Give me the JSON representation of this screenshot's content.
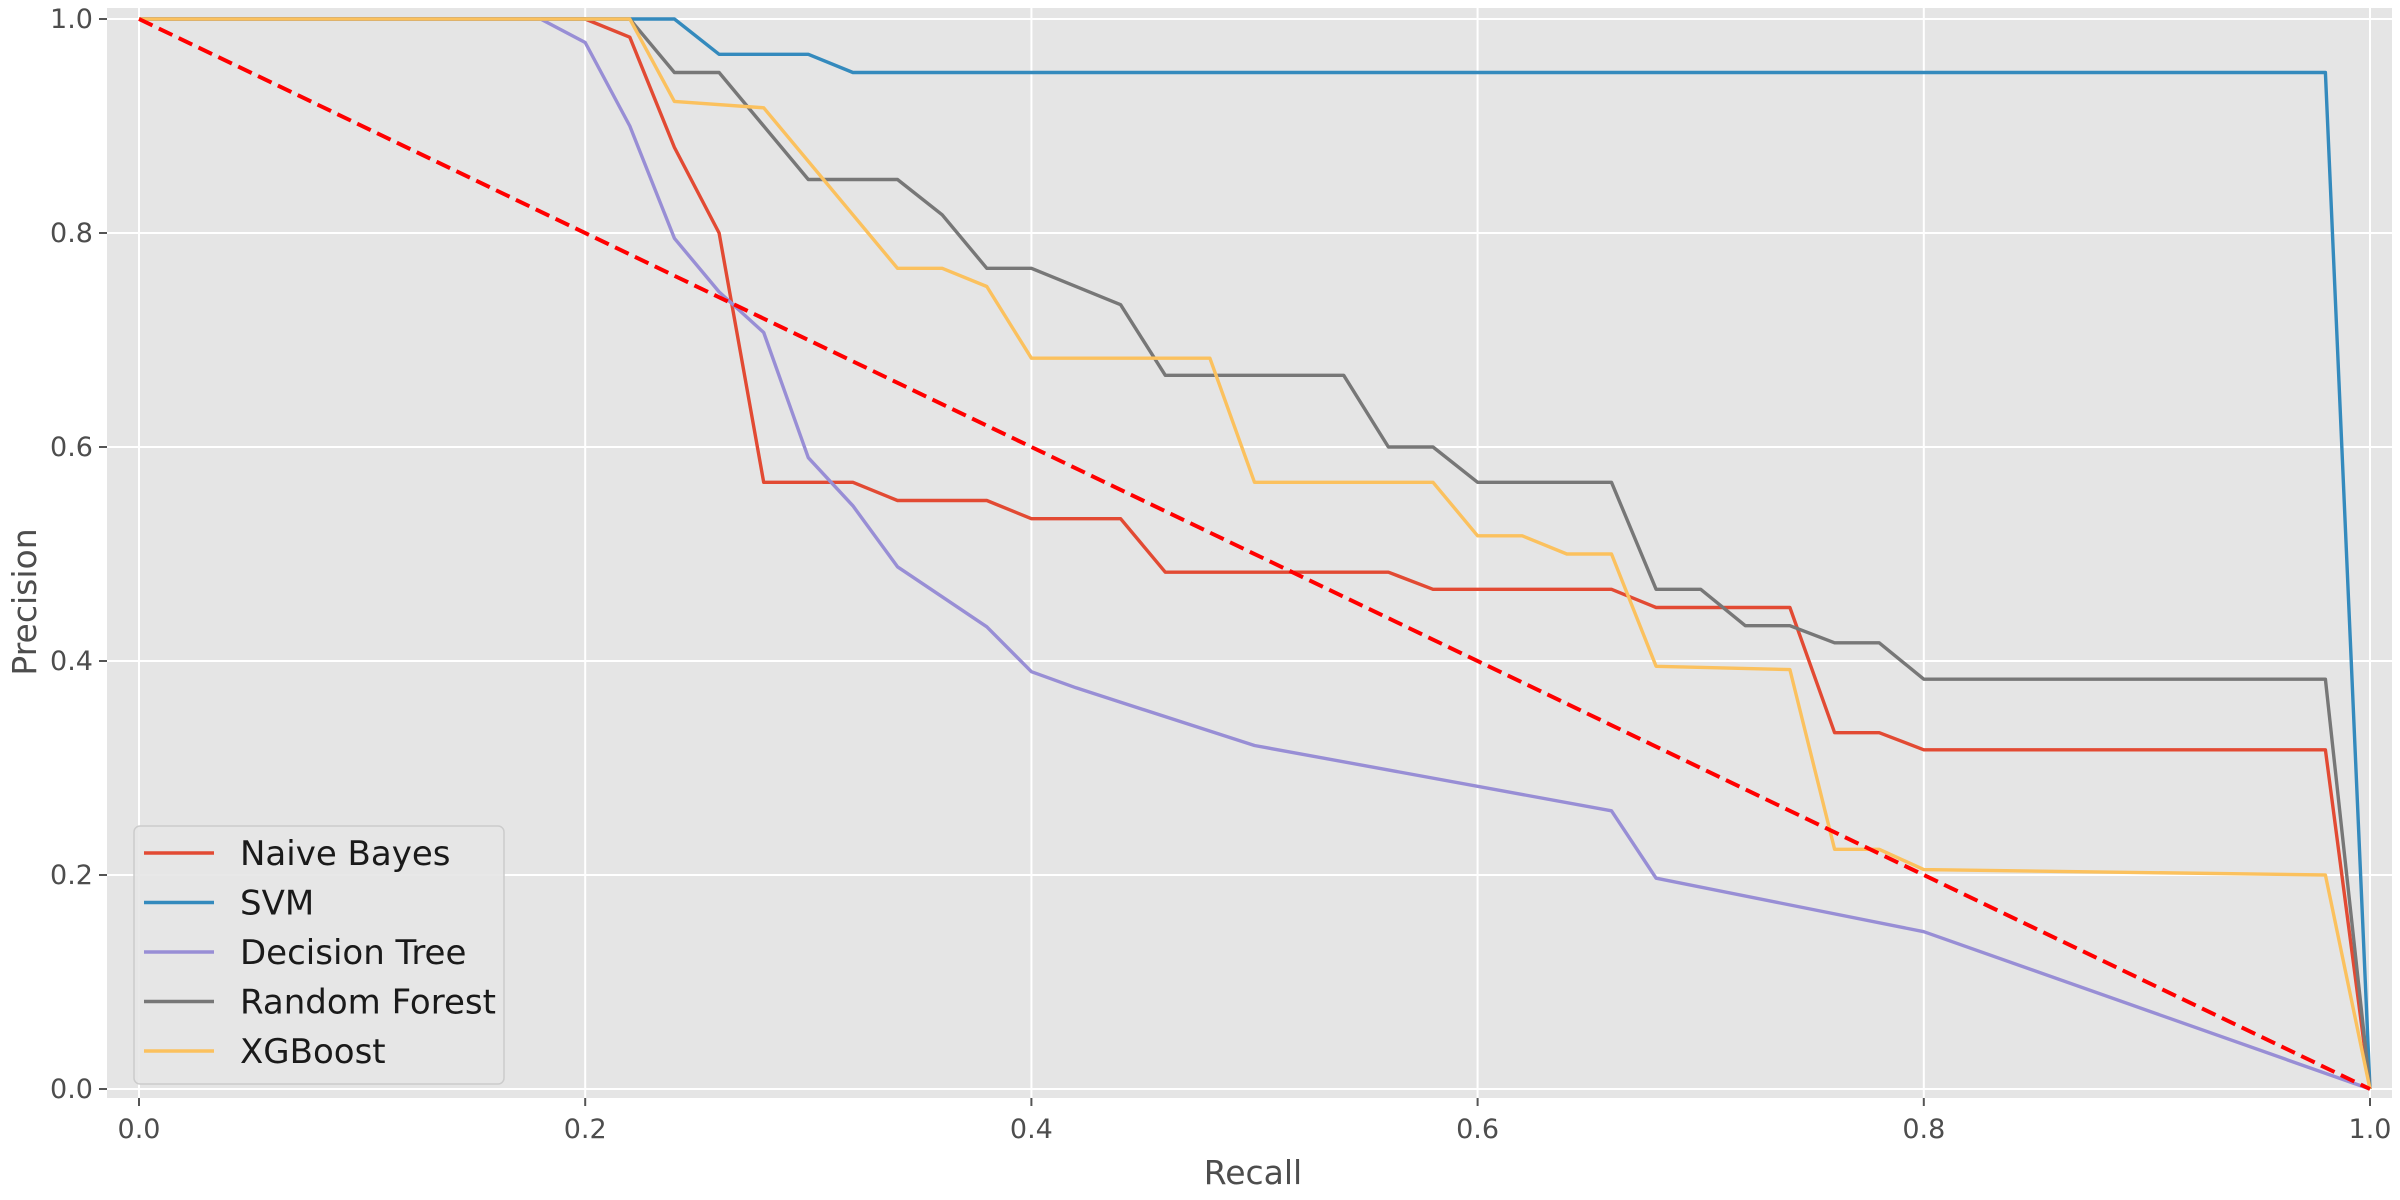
{
  "chart_data": {
    "type": "line",
    "title": "",
    "xlabel": "Recall",
    "ylabel": "Precision",
    "xlim": [
      0.0,
      1.0
    ],
    "ylim": [
      0.0,
      1.0
    ],
    "x_ticks": [
      "0.0",
      "0.2",
      "0.4",
      "0.6",
      "0.8",
      "1.0"
    ],
    "y_ticks": [
      "0.0",
      "0.2",
      "0.4",
      "0.6",
      "0.8",
      "1.0"
    ],
    "grid": true,
    "legend_position": "lower-left",
    "style": "ggplot",
    "series": [
      {
        "name": "Naive Bayes",
        "color": "#E24A33",
        "x": [
          0.0,
          0.2,
          0.22,
          0.24,
          0.26,
          0.28,
          0.32,
          0.34,
          0.38,
          0.4,
          0.44,
          0.46,
          0.56,
          0.58,
          0.66,
          0.68,
          0.74,
          0.76,
          0.78,
          0.8,
          0.98,
          1.0
        ],
        "y": [
          1.0,
          1.0,
          0.983,
          0.88,
          0.8,
          0.567,
          0.567,
          0.55,
          0.55,
          0.533,
          0.533,
          0.483,
          0.483,
          0.467,
          0.467,
          0.45,
          0.45,
          0.333,
          0.333,
          0.317,
          0.317,
          0.0
        ]
      },
      {
        "name": "SVM",
        "color": "#348ABD",
        "x": [
          0.0,
          0.24,
          0.26,
          0.3,
          0.32,
          0.98,
          1.0
        ],
        "y": [
          1.0,
          1.0,
          0.967,
          0.967,
          0.95,
          0.95,
          0.0
        ]
      },
      {
        "name": "Decision Tree",
        "color": "#988ED5",
        "x": [
          0.0,
          0.18,
          0.2,
          0.22,
          0.24,
          0.26,
          0.28,
          0.3,
          0.32,
          0.34,
          0.36,
          0.38,
          0.4,
          0.42,
          0.5,
          0.66,
          0.68,
          0.8,
          1.0
        ],
        "y": [
          1.0,
          1.0,
          0.978,
          0.9,
          0.795,
          0.745,
          0.707,
          0.59,
          0.545,
          0.488,
          0.46,
          0.432,
          0.39,
          0.375,
          0.321,
          0.26,
          0.197,
          0.147,
          0.0
        ]
      },
      {
        "name": "Random Forest",
        "color": "#777777",
        "x": [
          0.0,
          0.22,
          0.24,
          0.26,
          0.3,
          0.34,
          0.36,
          0.38,
          0.4,
          0.44,
          0.46,
          0.54,
          0.56,
          0.58,
          0.6,
          0.66,
          0.68,
          0.7,
          0.72,
          0.74,
          0.76,
          0.78,
          0.8,
          0.98,
          1.0
        ],
        "y": [
          1.0,
          1.0,
          0.95,
          0.95,
          0.85,
          0.85,
          0.817,
          0.767,
          0.767,
          0.733,
          0.667,
          0.667,
          0.6,
          0.6,
          0.567,
          0.567,
          0.467,
          0.467,
          0.433,
          0.433,
          0.417,
          0.417,
          0.383,
          0.383,
          0.0
        ]
      },
      {
        "name": "XGBoost",
        "color": "#FBC15E",
        "x": [
          0.0,
          0.22,
          0.24,
          0.28,
          0.34,
          0.36,
          0.38,
          0.4,
          0.48,
          0.5,
          0.58,
          0.6,
          0.62,
          0.64,
          0.66,
          0.68,
          0.74,
          0.76,
          0.78,
          0.8,
          0.98,
          1.0
        ],
        "y": [
          1.0,
          1.0,
          0.923,
          0.917,
          0.767,
          0.767,
          0.75,
          0.683,
          0.683,
          0.567,
          0.567,
          0.517,
          0.517,
          0.5,
          0.5,
          0.395,
          0.392,
          0.224,
          0.224,
          0.205,
          0.2,
          0.0
        ]
      }
    ],
    "reference_line": {
      "color": "#FF0000",
      "style": "dashed",
      "x": [
        0.0,
        1.0
      ],
      "y": [
        1.0,
        0.0
      ]
    }
  }
}
